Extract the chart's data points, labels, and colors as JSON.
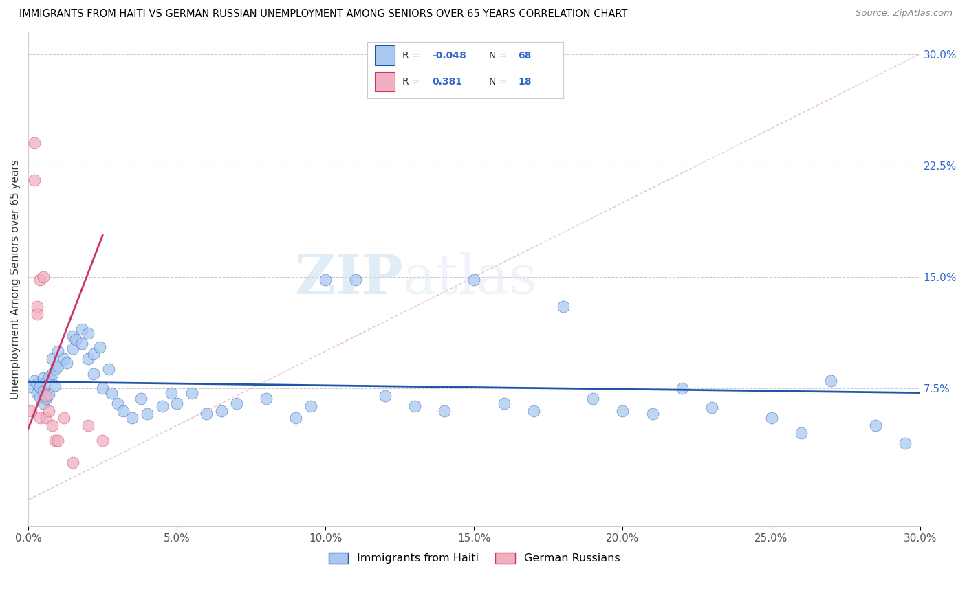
{
  "title": "IMMIGRANTS FROM HAITI VS GERMAN RUSSIAN UNEMPLOYMENT AMONG SENIORS OVER 65 YEARS CORRELATION CHART",
  "source": "Source: ZipAtlas.com",
  "ylabel": "Unemployment Among Seniors over 65 years",
  "xmin": 0.0,
  "xmax": 0.3,
  "ymin": -0.018,
  "ymax": 0.315,
  "xtick_labels": [
    "0.0%",
    "5.0%",
    "10.0%",
    "15.0%",
    "20.0%",
    "25.0%",
    "30.0%"
  ],
  "xtick_vals": [
    0.0,
    0.05,
    0.1,
    0.15,
    0.2,
    0.25,
    0.3
  ],
  "ytick_right_labels": [
    "30.0%",
    "22.5%",
    "15.0%",
    "7.5%"
  ],
  "ytick_right_vals": [
    0.3,
    0.225,
    0.15,
    0.075
  ],
  "legend_label1": "Immigrants from Haiti",
  "legend_label2": "German Russians",
  "color_haiti": "#a8c8f0",
  "color_german": "#f0b0c0",
  "color_haiti_line": "#2255aa",
  "color_german_line": "#cc3366",
  "color_diag_line": "#dddddd",
  "color_legend_text_blue": "#3366cc",
  "color_legend_text_black": "#333333",
  "watermark_zip": "ZIP",
  "watermark_atlas": "atlas",
  "haiti_scatter_x": [
    0.001,
    0.002,
    0.003,
    0.003,
    0.004,
    0.004,
    0.005,
    0.005,
    0.005,
    0.006,
    0.006,
    0.007,
    0.007,
    0.008,
    0.008,
    0.009,
    0.009,
    0.01,
    0.01,
    0.012,
    0.013,
    0.015,
    0.015,
    0.016,
    0.018,
    0.018,
    0.02,
    0.02,
    0.022,
    0.022,
    0.024,
    0.025,
    0.027,
    0.028,
    0.03,
    0.032,
    0.035,
    0.038,
    0.04,
    0.045,
    0.048,
    0.05,
    0.055,
    0.06,
    0.065,
    0.07,
    0.08,
    0.09,
    0.095,
    0.1,
    0.11,
    0.12,
    0.13,
    0.14,
    0.15,
    0.16,
    0.17,
    0.18,
    0.19,
    0.2,
    0.21,
    0.22,
    0.23,
    0.25,
    0.26,
    0.27,
    0.285,
    0.295
  ],
  "haiti_scatter_y": [
    0.076,
    0.08,
    0.078,
    0.072,
    0.076,
    0.069,
    0.082,
    0.073,
    0.065,
    0.079,
    0.068,
    0.083,
    0.071,
    0.085,
    0.095,
    0.088,
    0.077,
    0.09,
    0.1,
    0.095,
    0.092,
    0.11,
    0.102,
    0.108,
    0.115,
    0.105,
    0.112,
    0.095,
    0.098,
    0.085,
    0.103,
    0.075,
    0.088,
    0.072,
    0.065,
    0.06,
    0.055,
    0.068,
    0.058,
    0.063,
    0.072,
    0.065,
    0.072,
    0.058,
    0.06,
    0.065,
    0.068,
    0.055,
    0.063,
    0.148,
    0.148,
    0.07,
    0.063,
    0.06,
    0.148,
    0.065,
    0.06,
    0.13,
    0.068,
    0.06,
    0.058,
    0.075,
    0.062,
    0.055,
    0.045,
    0.08,
    0.05,
    0.038
  ],
  "german_scatter_x": [
    0.001,
    0.002,
    0.002,
    0.003,
    0.003,
    0.004,
    0.004,
    0.005,
    0.006,
    0.006,
    0.007,
    0.008,
    0.009,
    0.01,
    0.012,
    0.015,
    0.02,
    0.025
  ],
  "german_scatter_y": [
    0.06,
    0.24,
    0.215,
    0.13,
    0.125,
    0.148,
    0.055,
    0.15,
    0.07,
    0.055,
    0.06,
    0.05,
    0.04,
    0.04,
    0.055,
    0.025,
    0.05,
    0.04
  ],
  "haiti_line_x": [
    0.0,
    0.3
  ],
  "haiti_line_y": [
    0.0795,
    0.072
  ],
  "german_line_x": [
    0.0,
    0.025
  ],
  "german_line_y": [
    0.048,
    0.178
  ],
  "diag_line_x": [
    0.0,
    0.3
  ],
  "diag_line_y": [
    0.0,
    0.3
  ]
}
